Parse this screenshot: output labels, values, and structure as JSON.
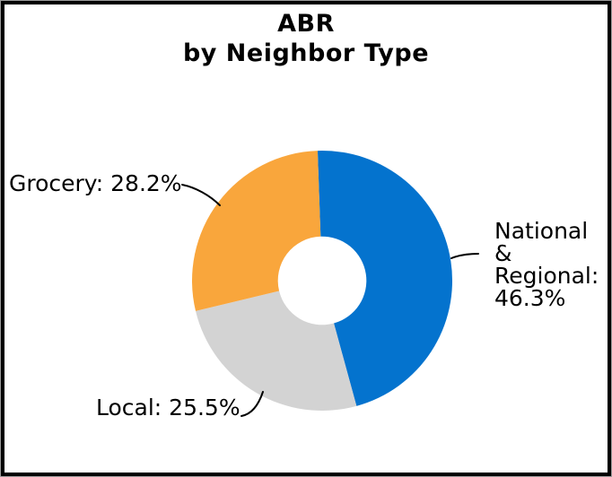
{
  "window": {
    "background": "#ffffff",
    "border_color": "#000000"
  },
  "title": {
    "text": "ABR\nby Neighbor Type"
  },
  "chart_data": {
    "type": "pie",
    "style": "donut",
    "title": "ABR by Neighbor Type",
    "direction": "clockwise",
    "start_angle_deg": -2,
    "inner_radius_ratio": 0.34,
    "legend_position": "none",
    "unit": "percent",
    "series": [
      {
        "name": "National & Regional",
        "value": 46.3,
        "color": "#0473CE",
        "label": "National & Regional: 46.3%"
      },
      {
        "name": "Local",
        "value": 25.5,
        "color": "#D3D3D3",
        "label": "Local: 25.5%"
      },
      {
        "name": "Grocery",
        "value": 28.2,
        "color": "#F9A63C",
        "label": "Grocery: 28.2%"
      }
    ]
  },
  "callouts": {
    "grocery": "Grocery: 28.2%",
    "national": "National &\nRegional:\n46.3%",
    "local": "Local: 25.5%"
  }
}
